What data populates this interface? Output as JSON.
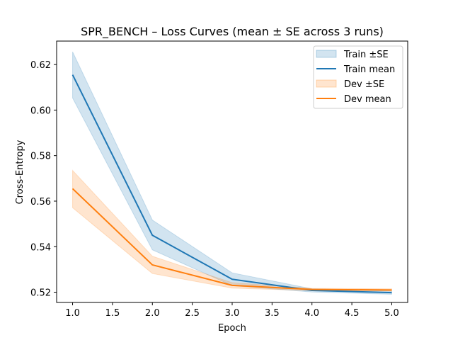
{
  "chart_data": {
    "type": "line",
    "title": "SPR_BENCH – Loss Curves (mean ± SE across 3 runs)",
    "xlabel": "Epoch",
    "ylabel": "Cross-Entropy",
    "xlim": [
      0.8,
      5.2
    ],
    "ylim": [
      0.5155,
      0.6303
    ],
    "xticks": [
      1.0,
      1.5,
      2.0,
      2.5,
      3.0,
      3.5,
      4.0,
      4.5,
      5.0
    ],
    "xtick_labels": [
      "1.0",
      "1.5",
      "2.0",
      "2.5",
      "3.0",
      "3.5",
      "4.0",
      "4.5",
      "5.0"
    ],
    "yticks": [
      0.52,
      0.54,
      0.56,
      0.58,
      0.6,
      0.62
    ],
    "ytick_labels": [
      "0.52",
      "0.54",
      "0.56",
      "0.58",
      "0.60",
      "0.62"
    ],
    "grid": false,
    "legend_position": "top-right",
    "x": [
      1,
      2,
      3,
      4,
      5
    ],
    "series": [
      {
        "name": "Train mean",
        "band_name": "Train ±SE",
        "color": "#1f77b4",
        "values": [
          0.6155,
          0.545,
          0.5257,
          0.5208,
          0.5198
        ],
        "upper": [
          0.6256,
          0.5517,
          0.5285,
          0.5215,
          0.5205
        ],
        "lower": [
          0.6053,
          0.5386,
          0.5229,
          0.5201,
          0.5191
        ]
      },
      {
        "name": "Dev mean",
        "band_name": "Dev ±SE",
        "color": "#ff7f0e",
        "values": [
          0.5655,
          0.532,
          0.523,
          0.5212,
          0.521
        ],
        "upper": [
          0.5735,
          0.5358,
          0.5242,
          0.5217,
          0.5215
        ],
        "lower": [
          0.5571,
          0.5282,
          0.5218,
          0.5207,
          0.5205
        ]
      }
    ],
    "legend": [
      "Train ±SE",
      "Train mean",
      "Dev ±SE",
      "Dev mean"
    ]
  }
}
